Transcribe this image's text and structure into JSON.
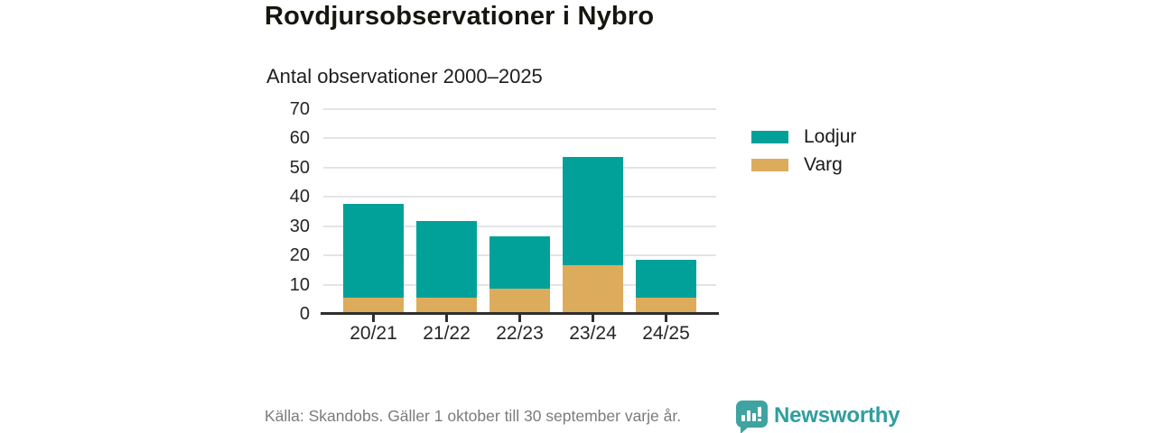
{
  "header": {
    "title": "Rovdjursobservationer i Nybro",
    "subtitle": "Antal observationer 2000–2025"
  },
  "chart_data": {
    "type": "bar",
    "stacked": true,
    "title": "Rovdjursobservationer i Nybro",
    "subtitle": "Antal observationer 2000–2025",
    "categories": [
      "20/21",
      "21/22",
      "22/23",
      "23/24",
      "24/25"
    ],
    "series": [
      {
        "name": "Lodjur",
        "color": "#01a19a",
        "values": [
          32,
          26,
          18,
          37,
          13
        ]
      },
      {
        "name": "Varg",
        "color": "#dcac5c",
        "values": [
          5,
          5,
          8,
          16,
          5
        ]
      }
    ],
    "stack_bottom_to_top": [
      "Varg",
      "Lodjur"
    ],
    "totals": [
      37,
      31,
      26,
      53,
      18
    ],
    "ylim": [
      0,
      70
    ],
    "yticks": [
      0,
      10,
      20,
      30,
      40,
      50,
      60,
      70
    ],
    "xlabel": "",
    "ylabel": "",
    "grid": true,
    "legend_position": "right"
  },
  "legend": {
    "items": [
      {
        "label": "Lodjur",
        "color": "#01a19a"
      },
      {
        "label": "Varg",
        "color": "#dcac5c"
      }
    ]
  },
  "footer": {
    "source": "Källa: Skandobs. Gäller 1 oktober till 30 september varje år.",
    "brand": "Newsworthy",
    "brand_color": "#2f9e9e"
  }
}
